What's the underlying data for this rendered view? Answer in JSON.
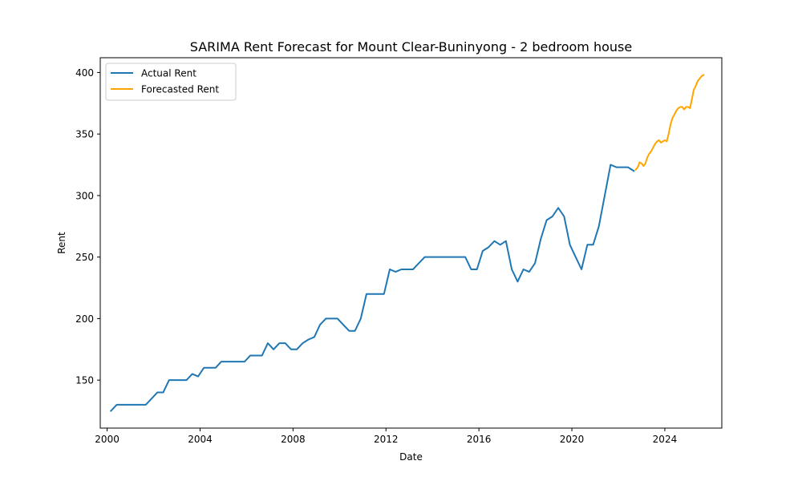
{
  "chart_data": {
    "type": "line",
    "title": "SARIMA Rent Forecast for Mount Clear-Buninyong - 2 bedroom house",
    "xlabel": "Date",
    "ylabel": "Rent",
    "x_ticks": [
      "2000",
      "2004",
      "2008",
      "2012",
      "2016",
      "2020",
      "2024"
    ],
    "y_ticks": [
      "150",
      "200",
      "250",
      "300",
      "350",
      "400"
    ],
    "xlim": [
      "1999-09-15",
      "2026-06-15"
    ],
    "ylim": [
      111,
      412
    ],
    "grid": false,
    "legend_position": "top-left",
    "series": [
      {
        "name": "Actual Rent",
        "color": "#1f77b4",
        "points": [
          [
            "2000-03-01",
            125
          ],
          [
            "2000-06-01",
            130
          ],
          [
            "2000-09-01",
            130
          ],
          [
            "2000-12-01",
            130
          ],
          [
            "2001-03-01",
            130
          ],
          [
            "2001-06-01",
            130
          ],
          [
            "2001-09-01",
            130
          ],
          [
            "2001-12-01",
            135
          ],
          [
            "2002-03-01",
            140
          ],
          [
            "2002-06-01",
            140
          ],
          [
            "2002-09-01",
            150
          ],
          [
            "2002-12-01",
            150
          ],
          [
            "2003-03-01",
            150
          ],
          [
            "2003-06-01",
            150
          ],
          [
            "2003-09-01",
            155
          ],
          [
            "2003-12-01",
            153
          ],
          [
            "2004-03-01",
            160
          ],
          [
            "2004-06-01",
            160
          ],
          [
            "2004-09-01",
            160
          ],
          [
            "2004-12-01",
            165
          ],
          [
            "2005-03-01",
            165
          ],
          [
            "2005-06-01",
            165
          ],
          [
            "2005-09-01",
            165
          ],
          [
            "2005-12-01",
            165
          ],
          [
            "2006-03-01",
            170
          ],
          [
            "2006-06-01",
            170
          ],
          [
            "2006-09-01",
            170
          ],
          [
            "2006-12-01",
            180
          ],
          [
            "2007-03-01",
            175
          ],
          [
            "2007-06-01",
            180
          ],
          [
            "2007-09-01",
            180
          ],
          [
            "2007-12-01",
            175
          ],
          [
            "2008-03-01",
            175
          ],
          [
            "2008-06-01",
            180
          ],
          [
            "2008-09-01",
            183
          ],
          [
            "2008-12-01",
            185
          ],
          [
            "2009-03-01",
            195
          ],
          [
            "2009-06-01",
            200
          ],
          [
            "2009-09-01",
            200
          ],
          [
            "2009-12-01",
            200
          ],
          [
            "2010-03-01",
            195
          ],
          [
            "2010-06-01",
            190
          ],
          [
            "2010-09-01",
            190
          ],
          [
            "2010-12-01",
            200
          ],
          [
            "2011-03-01",
            220
          ],
          [
            "2011-06-01",
            220
          ],
          [
            "2011-09-01",
            220
          ],
          [
            "2011-12-01",
            220
          ],
          [
            "2012-03-01",
            240
          ],
          [
            "2012-06-01",
            238
          ],
          [
            "2012-09-01",
            240
          ],
          [
            "2012-12-01",
            240
          ],
          [
            "2013-03-01",
            240
          ],
          [
            "2013-06-01",
            245
          ],
          [
            "2013-09-01",
            250
          ],
          [
            "2013-12-01",
            250
          ],
          [
            "2014-03-01",
            250
          ],
          [
            "2014-06-01",
            250
          ],
          [
            "2014-09-01",
            250
          ],
          [
            "2014-12-01",
            250
          ],
          [
            "2015-03-01",
            250
          ],
          [
            "2015-06-01",
            250
          ],
          [
            "2015-09-01",
            240
          ],
          [
            "2015-12-01",
            240
          ],
          [
            "2016-03-01",
            255
          ],
          [
            "2016-06-01",
            258
          ],
          [
            "2016-09-01",
            263
          ],
          [
            "2016-12-01",
            260
          ],
          [
            "2017-03-01",
            263
          ],
          [
            "2017-06-01",
            240
          ],
          [
            "2017-09-01",
            230
          ],
          [
            "2017-12-01",
            240
          ],
          [
            "2018-03-01",
            238
          ],
          [
            "2018-06-01",
            245
          ],
          [
            "2018-09-01",
            265
          ],
          [
            "2018-12-01",
            280
          ],
          [
            "2019-03-01",
            283
          ],
          [
            "2019-06-01",
            290
          ],
          [
            "2019-09-01",
            283
          ],
          [
            "2019-12-01",
            260
          ],
          [
            "2020-03-01",
            250
          ],
          [
            "2020-06-01",
            240
          ],
          [
            "2020-09-01",
            260
          ],
          [
            "2020-12-01",
            260
          ],
          [
            "2021-03-01",
            275
          ],
          [
            "2021-06-01",
            300
          ],
          [
            "2021-09-01",
            325
          ],
          [
            "2021-12-01",
            323
          ],
          [
            "2022-03-01",
            323
          ],
          [
            "2022-06-01",
            323
          ],
          [
            "2022-09-01",
            320
          ]
        ]
      },
      {
        "name": "Forecasted Rent",
        "color": "#ffa500",
        "points": [
          [
            "2022-10-01",
            321
          ],
          [
            "2022-11-01",
            323
          ],
          [
            "2022-12-01",
            327
          ],
          [
            "2023-01-01",
            326
          ],
          [
            "2023-02-01",
            324
          ],
          [
            "2023-03-01",
            326
          ],
          [
            "2023-04-01",
            331
          ],
          [
            "2023-05-01",
            334
          ],
          [
            "2023-06-01",
            336
          ],
          [
            "2023-07-01",
            339
          ],
          [
            "2023-08-01",
            342
          ],
          [
            "2023-09-01",
            344
          ],
          [
            "2023-10-01",
            345
          ],
          [
            "2023-11-01",
            343
          ],
          [
            "2023-12-01",
            344
          ],
          [
            "2024-01-01",
            345
          ],
          [
            "2024-02-01",
            344
          ],
          [
            "2024-03-01",
            350
          ],
          [
            "2024-04-01",
            358
          ],
          [
            "2024-05-01",
            363
          ],
          [
            "2024-06-01",
            366
          ],
          [
            "2024-07-01",
            369
          ],
          [
            "2024-08-01",
            371
          ],
          [
            "2024-09-01",
            372
          ],
          [
            "2024-10-01",
            372
          ],
          [
            "2024-11-01",
            370
          ],
          [
            "2024-12-01",
            372
          ],
          [
            "2025-01-01",
            372
          ],
          [
            "2025-02-01",
            371
          ],
          [
            "2025-03-01",
            378
          ],
          [
            "2025-04-01",
            386
          ],
          [
            "2025-05-01",
            389
          ],
          [
            "2025-06-01",
            393
          ],
          [
            "2025-07-01",
            395
          ],
          [
            "2025-08-01",
            397
          ],
          [
            "2025-09-01",
            398
          ]
        ]
      }
    ]
  }
}
